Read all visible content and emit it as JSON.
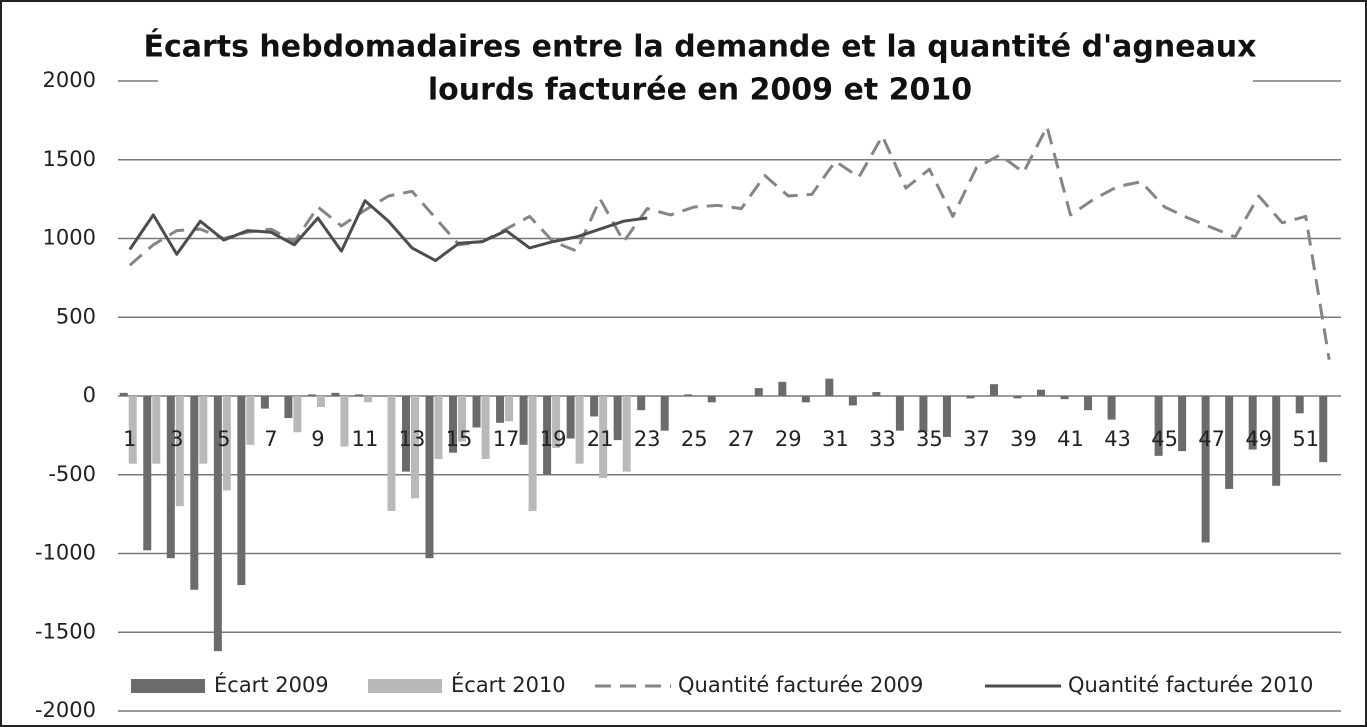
{
  "chart_data": {
    "type": "combo",
    "title": [
      "Écarts hebdomadaires entre la demande et la quantité d'agneaux",
      "lourds facturée en 2009 et 2010"
    ],
    "categories": [
      1,
      null,
      3,
      null,
      5,
      null,
      7,
      null,
      9,
      null,
      11,
      null,
      13,
      null,
      15,
      null,
      17,
      null,
      19,
      null,
      21,
      null,
      23,
      null,
      25,
      null,
      27,
      null,
      29,
      null,
      31,
      null,
      33,
      null,
      35,
      null,
      37,
      null,
      39,
      null,
      41,
      null,
      43,
      null,
      45,
      null,
      47,
      null,
      49,
      null,
      51,
      null
    ],
    "ylim": [
      -2000,
      2000
    ],
    "yticks": [
      -2000,
      -1500,
      -1000,
      -500,
      0,
      500,
      1000,
      1500,
      2000
    ],
    "grid": true,
    "legend": "bottom",
    "series": [
      {
        "name": "Écart 2009",
        "type": "bar",
        "color": "#6b6b6b",
        "values": [
          20,
          -980,
          -1030,
          -1230,
          -1620,
          -1200,
          -80,
          -140,
          10,
          20,
          10,
          0,
          -480,
          -1030,
          -360,
          -200,
          -170,
          -310,
          -500,
          -270,
          -130,
          -280,
          -90,
          -220,
          10,
          -40,
          0,
          50,
          90,
          -40,
          110,
          -60,
          25,
          -220,
          -230,
          -260,
          -15,
          75,
          -15,
          40,
          -20,
          -90,
          -150,
          0,
          -380,
          -350,
          -930,
          -590,
          -340,
          -570,
          -110,
          -420
        ]
      },
      {
        "name": "Écart 2010",
        "type": "bar",
        "color": "#b9b9b9",
        "values": [
          -430,
          -430,
          -700,
          -430,
          -600,
          -310,
          0,
          -230,
          -70,
          -320,
          -40,
          -730,
          -650,
          -400,
          -290,
          -400,
          -160,
          -730,
          -330,
          -430,
          -520,
          -480,
          0,
          null,
          null,
          null,
          null,
          null,
          null,
          null,
          null,
          null,
          null,
          null,
          null,
          null,
          null,
          null,
          null,
          null,
          null,
          null,
          null,
          null,
          null,
          null,
          null,
          null,
          null,
          null,
          null,
          null
        ]
      },
      {
        "name": "Quantité facturée 2009",
        "type": "line",
        "dash": true,
        "color": "#858585",
        "values": [
          830,
          960,
          1050,
          1060,
          1000,
          1040,
          1060,
          980,
          1200,
          1080,
          1180,
          1270,
          1300,
          1130,
          960,
          980,
          1060,
          1140,
          980,
          920,
          1250,
          980,
          1190,
          1150,
          1200,
          1210,
          1190,
          1400,
          1270,
          1280,
          1490,
          1390,
          1650,
          1320,
          1440,
          1140,
          1450,
          1530,
          1420,
          1710,
          1150,
          1250,
          1330,
          1360,
          1200,
          1130,
          1070,
          1010,
          1270,
          1100,
          1140,
          230
        ]
      },
      {
        "name": "Quantité facturée 2010",
        "type": "line",
        "dash": false,
        "color": "#4d4d4d",
        "values": [
          930,
          1150,
          900,
          1110,
          990,
          1050,
          1040,
          960,
          1130,
          920,
          1240,
          1110,
          940,
          860,
          970,
          980,
          1050,
          940,
          980,
          1010,
          1060,
          1110,
          1130,
          null,
          null,
          null,
          null,
          null,
          null,
          null,
          null,
          null,
          null,
          null,
          null,
          null,
          null,
          null,
          null,
          null,
          null,
          null,
          null,
          null,
          null,
          null,
          null,
          null,
          null,
          null,
          null,
          null
        ]
      }
    ]
  }
}
